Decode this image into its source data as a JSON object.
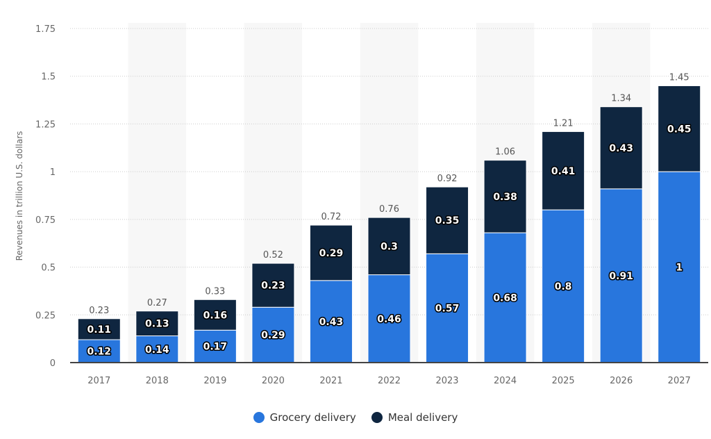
{
  "chart_data": {
    "type": "bar",
    "stacked": true,
    "categories": [
      "2017",
      "2018",
      "2019",
      "2020",
      "2021",
      "2022",
      "2023",
      "2024",
      "2025",
      "2026",
      "2027"
    ],
    "series": [
      {
        "name": "Grocery delivery",
        "color": "#2876dd",
        "values": [
          0.12,
          0.14,
          0.17,
          0.29,
          0.43,
          0.46,
          0.57,
          0.68,
          0.8,
          0.91,
          1
        ]
      },
      {
        "name": "Meal delivery",
        "color": "#0f2640",
        "values": [
          0.11,
          0.13,
          0.16,
          0.23,
          0.29,
          0.3,
          0.35,
          0.38,
          0.41,
          0.43,
          0.45
        ]
      }
    ],
    "totals": [
      0.23,
      0.27,
      0.33,
      0.52,
      0.72,
      0.76,
      0.92,
      1.06,
      1.21,
      1.34,
      1.45
    ],
    "ylabel": "Revenues in trillion U.S. dollars",
    "xlabel": "",
    "ylim": [
      0,
      1.75
    ],
    "yticks": [
      "0",
      "0.25",
      "0.5",
      "0.75",
      "1",
      "1.25",
      "1.5",
      "1.75"
    ],
    "grid": true,
    "legend_position": "bottom"
  }
}
